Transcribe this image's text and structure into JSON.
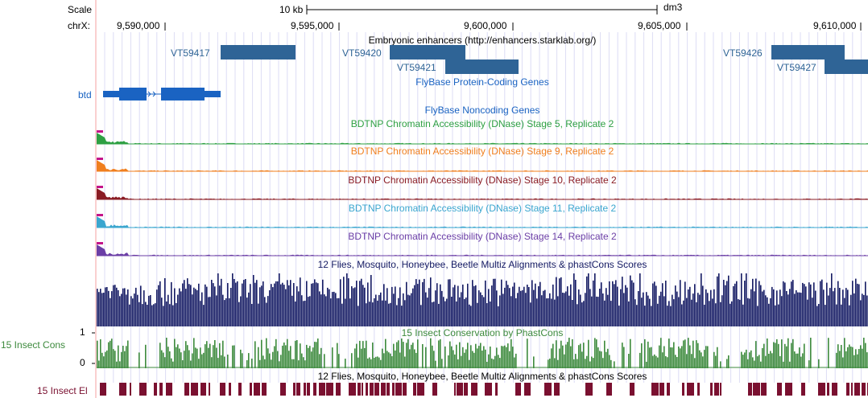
{
  "header": {
    "scale_label": "Scale",
    "scale_value": "10 kb",
    "assembly": "dm3",
    "chrom_label": "chrX:",
    "positions": [
      "9,590,000",
      "9,595,000",
      "9,600,000",
      "9,605,000",
      "9,610,000"
    ]
  },
  "tracks": {
    "enhancers": {
      "title": "Embryonic enhancers (http://enhancers.starklab.org/)",
      "features": [
        {
          "name": "VT59417"
        },
        {
          "name": "VT59420"
        },
        {
          "name": "VT59421"
        },
        {
          "name": "VT59426"
        },
        {
          "name": "VT59427"
        }
      ]
    },
    "genes": {
      "title": "FlyBase Protein-Coding Genes",
      "gene": "btd"
    },
    "noncoding": {
      "title": "FlyBase Noncoding Genes"
    },
    "dnase": [
      {
        "title": "BDTNP Chromatin Accessibility (DNase) Stage 5, Replicate 2",
        "color": "#2ea043"
      },
      {
        "title": "BDTNP Chromatin Accessibility (DNase) Stage 9, Replicate 2",
        "color": "#f07f1e"
      },
      {
        "title": "BDTNP Chromatin Accessibility (DNase) Stage 10, Replicate 2",
        "color": "#8a1c24"
      },
      {
        "title": "BDTNP Chromatin Accessibility (DNase) Stage 11, Replicate 2",
        "color": "#3aa6cf"
      },
      {
        "title": "BDTNP Chromatin Accessibility (DNase) Stage 14, Replicate 2",
        "color": "#6b3ea6"
      }
    ],
    "multiz": {
      "title": "12 Flies, Mosquito, Honeybee, Beetle Multiz Alignments & phastCons Scores",
      "color": "#141a63"
    },
    "cons": {
      "label": "15 Insect Cons",
      "title": "15 Insect Conservation by PhastCons",
      "axis_max": "1",
      "axis_min": "0",
      "color": "#3d8a3d"
    },
    "elements": {
      "label": "15 Insect El",
      "title": "12 Flies, Mosquito, Honeybee, Beetle Multiz Alignments & phastCons Scores",
      "color": "#7a1030"
    }
  }
}
